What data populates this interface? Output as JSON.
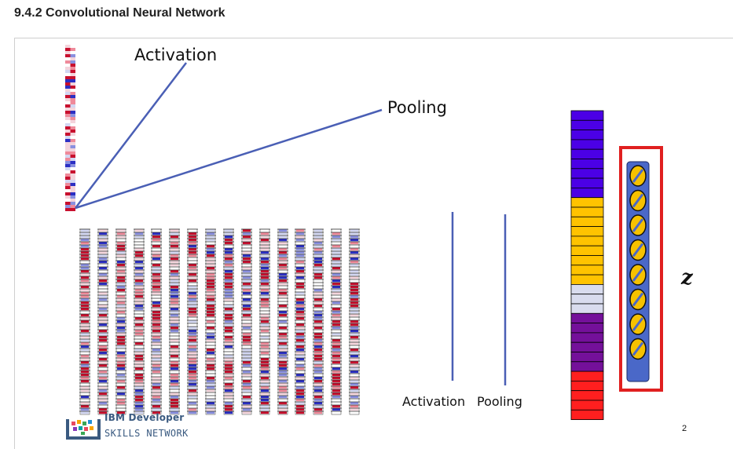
{
  "page": {
    "section_heading": "9.4.2 Convolutional Neural Network"
  },
  "slide": {
    "label_activation_top": "Activation",
    "label_pooling_top": "Pooling",
    "label_activation_bottom": "Activation",
    "label_pooling_bottom": "Pooling",
    "z_label": "z",
    "page_number": "2",
    "logo": {
      "line1": "IBM Developer",
      "line2": "SKILLS NETWORK"
    }
  },
  "colors": {
    "line": "#4a5fb5",
    "red_frame": "#e02020",
    "vector_blue": "#4a68c8",
    "vector_yellow": "#f6c100",
    "stack_purple": "#4b00e6",
    "stack_yellow": "#ffc300",
    "stack_light": "#d9dcee",
    "stack_violet": "#74109a",
    "stack_red": "#ff1f1f"
  }
}
